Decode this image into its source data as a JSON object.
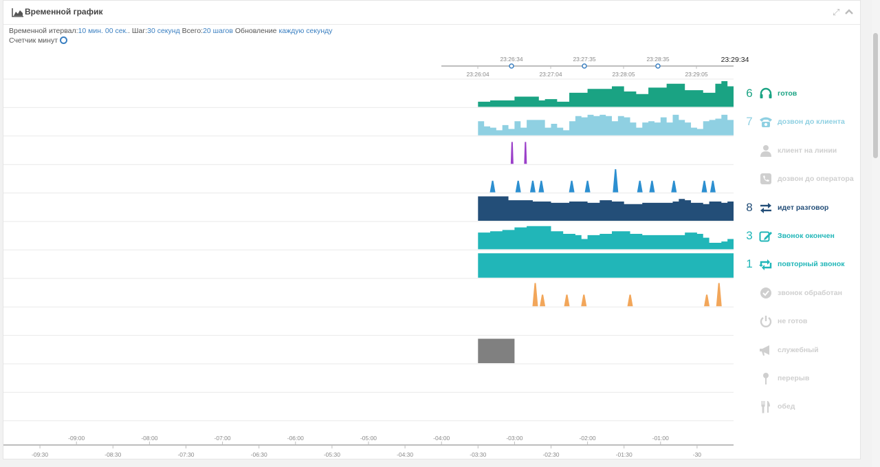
{
  "header": {
    "title": "Временной график",
    "icon": "area-chart-icon",
    "expand_icon": "expand-icon",
    "collapse_icon": "chevron-up-icon"
  },
  "info": {
    "interval_label": "Временной итервал:",
    "interval_value": "10 мин. 00 сек.",
    "step_label": "Шаг:",
    "step_value": "30 секунд",
    "total_label": "Всего:",
    "total_value": "20 шагов",
    "update_label": "Обновление",
    "update_value": "каждую секунду",
    "counter_label": "Счетчик минут"
  },
  "top_axis": {
    "current_time": "23:29:34",
    "upper_ticks": [
      "23:26:34",
      "23:27:35",
      "23:28:35"
    ],
    "lower_ticks": [
      "23:26:04",
      "23:27:04",
      "23:28:05",
      "23:29:05"
    ]
  },
  "bottom_axis": {
    "upper_ticks": [
      "-09:00",
      "-08:00",
      "-07:00",
      "-06:00",
      "-05:00",
      "-04:00",
      "-03:00",
      "-02:00",
      "-01:00"
    ],
    "lower_ticks": [
      "-09:30",
      "-08:30",
      "-07:30",
      "-06:30",
      "-05:30",
      "-04:30",
      "-03:30",
      "-02:30",
      "-01:30",
      "-30"
    ]
  },
  "legend": [
    {
      "count": "6",
      "label": "готов",
      "icon": "headset-icon",
      "color": "#1aa383",
      "active": true
    },
    {
      "count": "7",
      "label": "дозвон до клиента",
      "icon": "phone-ringing-icon",
      "color": "#8fd0e2",
      "active": true
    },
    {
      "count": "",
      "label": "клиент на линии",
      "icon": "user-icon",
      "color": "#cfcfcf",
      "active": false
    },
    {
      "count": "",
      "label": "дозвон до оператора",
      "icon": "phone-square-icon",
      "color": "#cfcfcf",
      "active": false
    },
    {
      "count": "8",
      "label": "идет разговор",
      "icon": "exchange-icon",
      "color": "#234e78",
      "active": true
    },
    {
      "count": "3",
      "label": "Звонок окончен",
      "icon": "edit-icon",
      "color": "#21b6b8",
      "active": true
    },
    {
      "count": "1",
      "label": "повторный звонок",
      "icon": "retweet-icon",
      "color": "#21b6b8",
      "active": true
    },
    {
      "count": "",
      "label": "звонок обработан",
      "icon": "check-circle-icon",
      "color": "#cfcfcf",
      "active": false
    },
    {
      "count": "",
      "label": "не готов",
      "icon": "power-icon",
      "color": "#cfcfcf",
      "active": false
    },
    {
      "count": "",
      "label": "служебный",
      "icon": "megaphone-icon",
      "color": "#cfcfcf",
      "active": false
    },
    {
      "count": "",
      "label": "перерыв",
      "icon": "pin-icon",
      "color": "#cfcfcf",
      "active": false
    },
    {
      "count": "",
      "label": "обед",
      "icon": "cutlery-icon",
      "color": "#cfcfcf",
      "active": false
    }
  ],
  "chart_data": {
    "type": "area",
    "x_unit": "seconds relative to now",
    "x_range": [
      -600,
      0
    ],
    "data_start": -210,
    "rows": [
      {
        "name": "готов",
        "color": "#1aa383",
        "points": [
          [
            -210,
            0.2
          ],
          [
            -200,
            0.25
          ],
          [
            -190,
            0.25
          ],
          [
            -180,
            0.4
          ],
          [
            -170,
            0.4
          ],
          [
            -160,
            0.25
          ],
          [
            -155,
            0.3
          ],
          [
            -150,
            0.3
          ],
          [
            -145,
            0.2
          ],
          [
            -140,
            0.2
          ],
          [
            -135,
            0.55
          ],
          [
            -125,
            0.55
          ],
          [
            -120,
            0.7
          ],
          [
            -105,
            0.7
          ],
          [
            -100,
            0.8
          ],
          [
            -95,
            0.8
          ],
          [
            -90,
            0.6
          ],
          [
            -85,
            0.6
          ],
          [
            -80,
            0.5
          ],
          [
            -75,
            0.5
          ],
          [
            -70,
            0.75
          ],
          [
            -60,
            0.75
          ],
          [
            -55,
            0.9
          ],
          [
            -45,
            0.9
          ],
          [
            -40,
            0.65
          ],
          [
            -30,
            0.65
          ],
          [
            -25,
            0.55
          ],
          [
            -20,
            0.55
          ],
          [
            -15,
            0.9
          ],
          [
            -10,
            1.0
          ],
          [
            -5,
            0.8
          ],
          [
            0,
            0.8
          ]
        ]
      },
      {
        "name": "дозвон до клиента",
        "color": "#8fd0e2",
        "points": [
          [
            -210,
            0.55
          ],
          [
            -205,
            0.35
          ],
          [
            -200,
            0.3
          ],
          [
            -195,
            0.2
          ],
          [
            -190,
            0.4
          ],
          [
            -185,
            0.25
          ],
          [
            -180,
            0.55
          ],
          [
            -175,
            0.3
          ],
          [
            -170,
            0.6
          ],
          [
            -160,
            0.6
          ],
          [
            -155,
            0.3
          ],
          [
            -150,
            0.45
          ],
          [
            -145,
            0.3
          ],
          [
            -140,
            0.2
          ],
          [
            -135,
            0.55
          ],
          [
            -130,
            0.75
          ],
          [
            -125,
            0.7
          ],
          [
            -120,
            0.8
          ],
          [
            -115,
            0.75
          ],
          [
            -110,
            0.8
          ],
          [
            -105,
            0.75
          ],
          [
            -100,
            0.55
          ],
          [
            -95,
            0.75
          ],
          [
            -90,
            0.7
          ],
          [
            -85,
            0.5
          ],
          [
            -80,
            0.3
          ],
          [
            -75,
            0.5
          ],
          [
            -70,
            0.55
          ],
          [
            -65,
            0.5
          ],
          [
            -60,
            0.7
          ],
          [
            -55,
            0.5
          ],
          [
            -50,
            0.8
          ],
          [
            -45,
            0.6
          ],
          [
            -40,
            0.5
          ],
          [
            -35,
            0.3
          ],
          [
            -30,
            0.25
          ],
          [
            -25,
            0.55
          ],
          [
            -20,
            0.6
          ],
          [
            -15,
            0.65
          ],
          [
            -10,
            0.8
          ],
          [
            -5,
            0.6
          ],
          [
            0,
            1.0
          ]
        ]
      },
      {
        "name": "клиент на линии",
        "color": "#9b40c9",
        "points": []
      },
      {
        "name": "дозвон до оператора",
        "color": "#2c8fd0",
        "points": []
      },
      {
        "name": "идет разговор",
        "color": "#234e78",
        "points": [
          [
            -210,
            0.95
          ],
          [
            -190,
            0.95
          ],
          [
            -185,
            0.8
          ],
          [
            -165,
            0.75
          ],
          [
            -150,
            0.7
          ],
          [
            -135,
            0.75
          ],
          [
            -120,
            0.7
          ],
          [
            -110,
            0.8
          ],
          [
            -100,
            0.75
          ],
          [
            -90,
            0.65
          ],
          [
            -75,
            0.7
          ],
          [
            -60,
            0.7
          ],
          [
            -50,
            0.75
          ],
          [
            -45,
            0.85
          ],
          [
            -40,
            0.8
          ],
          [
            -35,
            0.7
          ],
          [
            -25,
            0.65
          ],
          [
            -20,
            0.75
          ],
          [
            -10,
            0.7
          ],
          [
            -5,
            0.75
          ],
          [
            0,
            0.75
          ]
        ]
      },
      {
        "name": "Звонок окончен",
        "color": "#21b6b8",
        "points": [
          [
            -210,
            0.65
          ],
          [
            -200,
            0.7
          ],
          [
            -190,
            0.75
          ],
          [
            -180,
            0.85
          ],
          [
            -170,
            0.9
          ],
          [
            -160,
            0.9
          ],
          [
            -150,
            0.7
          ],
          [
            -140,
            0.6
          ],
          [
            -130,
            0.55
          ],
          [
            -125,
            0.4
          ],
          [
            -120,
            0.55
          ],
          [
            -110,
            0.6
          ],
          [
            -100,
            0.7
          ],
          [
            -85,
            0.6
          ],
          [
            -75,
            0.55
          ],
          [
            -60,
            0.55
          ],
          [
            -40,
            0.65
          ],
          [
            -30,
            0.6
          ],
          [
            -25,
            0.45
          ],
          [
            -20,
            0.25
          ],
          [
            -10,
            0.3
          ],
          [
            -5,
            0.4
          ],
          [
            0,
            0.45
          ]
        ]
      },
      {
        "name": "повторный звонок",
        "color": "#21b6b8",
        "points": [
          [
            -210,
            0.95
          ],
          [
            0,
            0.95
          ]
        ]
      },
      {
        "name": "звонок обработан",
        "color": "#f2a65a",
        "points": []
      },
      {
        "name": "не готов",
        "color": "#cfcfcf",
        "points": []
      },
      {
        "name": "служебный",
        "color": "#808080",
        "points": [
          [
            -210,
            0.95
          ],
          [
            -180,
            0.95
          ]
        ]
      },
      {
        "name": "перерыв",
        "color": "#cfcfcf",
        "points": []
      },
      {
        "name": "обед",
        "color": "#cfcfcf",
        "points": []
      }
    ]
  }
}
